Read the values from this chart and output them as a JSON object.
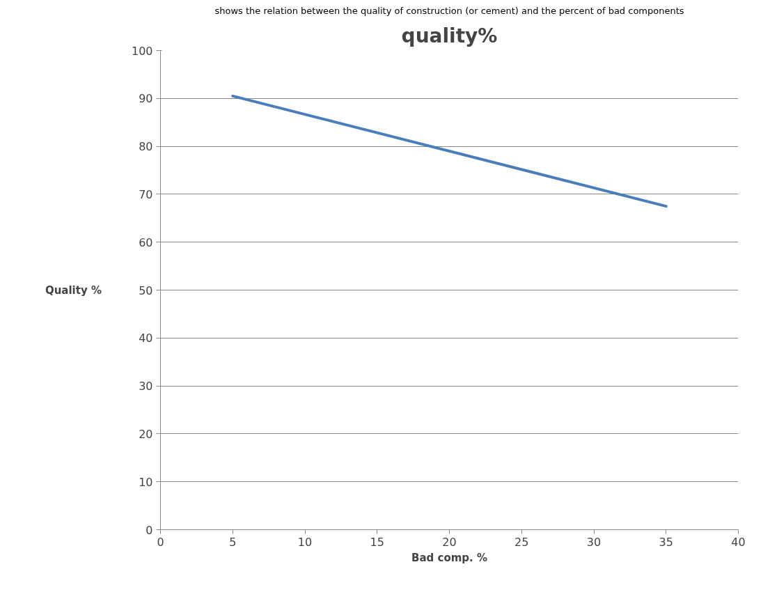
{
  "chart_data": {
    "type": "line",
    "title": "quality%",
    "xlabel": "Bad comp. %",
    "ylabel": "Quality %",
    "annotations": [
      "shows the relation between the quality of construction (or cement) and the percent of bad components"
    ],
    "x": [
      5,
      35
    ],
    "series": [
      {
        "color": "#4a7ebb",
        "values": [
          90.5,
          67.5
        ]
      }
    ],
    "xlim": [
      0,
      40
    ],
    "xticks": [
      0,
      5,
      10,
      15,
      20,
      25,
      30,
      35,
      40
    ],
    "ylim": [
      0,
      100
    ],
    "yticks": [
      0,
      10,
      20,
      30,
      40,
      50,
      60,
      70,
      80,
      90,
      100
    ],
    "grid": "y",
    "marker": "none",
    "line_style": "solid"
  }
}
